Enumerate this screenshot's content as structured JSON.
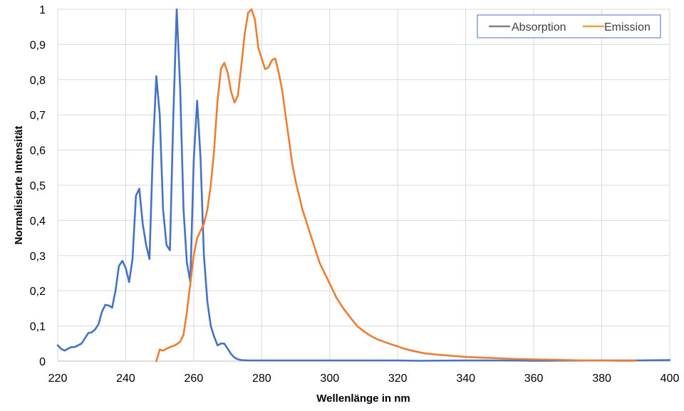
{
  "chart_data": {
    "type": "line",
    "title": "",
    "xlabel": "Wellenlänge in nm",
    "ylabel": "Normalisierte Intensität",
    "xlim": [
      220,
      400
    ],
    "ylim": [
      0,
      1
    ],
    "x_ticks": [
      220,
      240,
      260,
      280,
      300,
      320,
      340,
      360,
      380,
      400
    ],
    "x_tick_labels": [
      "220",
      "240",
      "260",
      "280",
      "300",
      "320",
      "340",
      "360",
      "380",
      "400"
    ],
    "y_ticks": [
      0,
      0.1,
      0.2,
      0.3,
      0.4,
      0.5,
      0.6,
      0.7,
      0.8,
      0.9,
      1
    ],
    "y_tick_labels": [
      "0",
      "0,1",
      "0,2",
      "0,3",
      "0,4",
      "0,5",
      "0,6",
      "0,7",
      "0,8",
      "0,9",
      "1"
    ],
    "grid": true,
    "legend_position": "top-right",
    "legend": [
      {
        "label": "Absorption",
        "color": "#808080"
      },
      {
        "label": "Emission",
        "color": "#e8a33d"
      }
    ],
    "series": [
      {
        "name": "Absorption",
        "color": "#4472c4",
        "points": [
          [
            220,
            0.045
          ],
          [
            221,
            0.035
          ],
          [
            222,
            0.03
          ],
          [
            223,
            0.035
          ],
          [
            224,
            0.04
          ],
          [
            225,
            0.04
          ],
          [
            226,
            0.045
          ],
          [
            227,
            0.05
          ],
          [
            228,
            0.065
          ],
          [
            229,
            0.08
          ],
          [
            230,
            0.082
          ],
          [
            231,
            0.09
          ],
          [
            232,
            0.105
          ],
          [
            233,
            0.14
          ],
          [
            234,
            0.16
          ],
          [
            235,
            0.158
          ],
          [
            236,
            0.152
          ],
          [
            237,
            0.2
          ],
          [
            238,
            0.27
          ],
          [
            239,
            0.285
          ],
          [
            240,
            0.265
          ],
          [
            241,
            0.225
          ],
          [
            242,
            0.29
          ],
          [
            243,
            0.47
          ],
          [
            244,
            0.49
          ],
          [
            245,
            0.39
          ],
          [
            246,
            0.33
          ],
          [
            247,
            0.29
          ],
          [
            248,
            0.6
          ],
          [
            249,
            0.81
          ],
          [
            250,
            0.7
          ],
          [
            251,
            0.43
          ],
          [
            252,
            0.33
          ],
          [
            253,
            0.315
          ],
          [
            254,
            0.7
          ],
          [
            255,
            1.0
          ],
          [
            256,
            0.78
          ],
          [
            257,
            0.43
          ],
          [
            258,
            0.28
          ],
          [
            259,
            0.225
          ],
          [
            260,
            0.57
          ],
          [
            261,
            0.74
          ],
          [
            262,
            0.58
          ],
          [
            263,
            0.3
          ],
          [
            264,
            0.17
          ],
          [
            265,
            0.1
          ],
          [
            266,
            0.07
          ],
          [
            267,
            0.045
          ],
          [
            268,
            0.05
          ],
          [
            269,
            0.05
          ],
          [
            270,
            0.035
          ],
          [
            271,
            0.02
          ],
          [
            272,
            0.01
          ],
          [
            273,
            0.005
          ],
          [
            274,
            0.003
          ],
          [
            276,
            0.002
          ],
          [
            280,
            0.002
          ],
          [
            300,
            0.002
          ],
          [
            320,
            0.002
          ],
          [
            326,
            0.001
          ],
          [
            340,
            0.002
          ],
          [
            350,
            0.002
          ],
          [
            360,
            0.001
          ],
          [
            380,
            0.002
          ],
          [
            390,
            0.002
          ],
          [
            400,
            0.003
          ]
        ]
      },
      {
        "name": "Emission",
        "color": "#ed7d31",
        "points": [
          [
            249,
            0.0
          ],
          [
            250,
            0.033
          ],
          [
            251,
            0.03
          ],
          [
            252,
            0.035
          ],
          [
            253,
            0.04
          ],
          [
            254,
            0.043
          ],
          [
            255,
            0.048
          ],
          [
            256,
            0.055
          ],
          [
            257,
            0.075
          ],
          [
            258,
            0.14
          ],
          [
            259,
            0.22
          ],
          [
            260,
            0.3
          ],
          [
            261,
            0.35
          ],
          [
            262,
            0.37
          ],
          [
            263,
            0.39
          ],
          [
            264,
            0.43
          ],
          [
            265,
            0.5
          ],
          [
            266,
            0.6
          ],
          [
            267,
            0.74
          ],
          [
            268,
            0.83
          ],
          [
            269,
            0.848
          ],
          [
            270,
            0.82
          ],
          [
            271,
            0.765
          ],
          [
            272,
            0.735
          ],
          [
            273,
            0.755
          ],
          [
            274,
            0.84
          ],
          [
            275,
            0.93
          ],
          [
            276,
            0.99
          ],
          [
            277,
            1.0
          ],
          [
            278,
            0.97
          ],
          [
            279,
            0.89
          ],
          [
            280,
            0.86
          ],
          [
            281,
            0.83
          ],
          [
            282,
            0.835
          ],
          [
            283,
            0.855
          ],
          [
            284,
            0.86
          ],
          [
            285,
            0.82
          ],
          [
            286,
            0.77
          ],
          [
            287,
            0.7
          ],
          [
            288,
            0.63
          ],
          [
            289,
            0.56
          ],
          [
            290,
            0.51
          ],
          [
            291,
            0.47
          ],
          [
            292,
            0.43
          ],
          [
            293,
            0.4
          ],
          [
            294,
            0.37
          ],
          [
            295,
            0.34
          ],
          [
            296,
            0.31
          ],
          [
            297,
            0.28
          ],
          [
            298,
            0.26
          ],
          [
            299,
            0.24
          ],
          [
            300,
            0.22
          ],
          [
            302,
            0.18
          ],
          [
            304,
            0.15
          ],
          [
            306,
            0.125
          ],
          [
            308,
            0.1
          ],
          [
            310,
            0.085
          ],
          [
            312,
            0.072
          ],
          [
            314,
            0.062
          ],
          [
            316,
            0.055
          ],
          [
            318,
            0.048
          ],
          [
            320,
            0.042
          ],
          [
            322,
            0.035
          ],
          [
            325,
            0.028
          ],
          [
            328,
            0.022
          ],
          [
            332,
            0.018
          ],
          [
            336,
            0.015
          ],
          [
            340,
            0.012
          ],
          [
            345,
            0.01
          ],
          [
            350,
            0.008
          ],
          [
            355,
            0.006
          ],
          [
            360,
            0.005
          ],
          [
            365,
            0.004
          ],
          [
            370,
            0.003
          ],
          [
            375,
            0.002
          ],
          [
            380,
            0.002
          ],
          [
            385,
            0.001
          ],
          [
            390,
            0.001
          ]
        ]
      }
    ]
  }
}
